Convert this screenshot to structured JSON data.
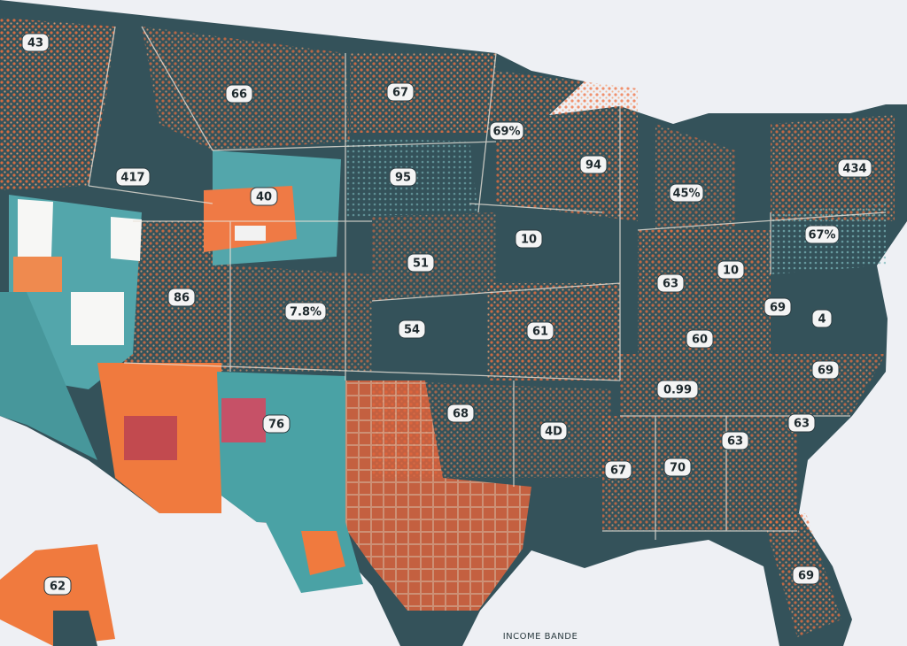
{
  "labels": [
    "43",
    "66",
    "67",
    "69%",
    "417",
    "40",
    "95",
    "94",
    "45%",
    "434",
    "86",
    "51",
    "10",
    "67%",
    "7.8%",
    "54",
    "61",
    "10",
    "63",
    "69",
    "4",
    "60",
    "0.99",
    "69",
    "76",
    "68",
    "4D",
    "67",
    "70",
    "63",
    "63",
    "62",
    "69"
  ],
  "legend_title": "INCOME BANDE"
}
